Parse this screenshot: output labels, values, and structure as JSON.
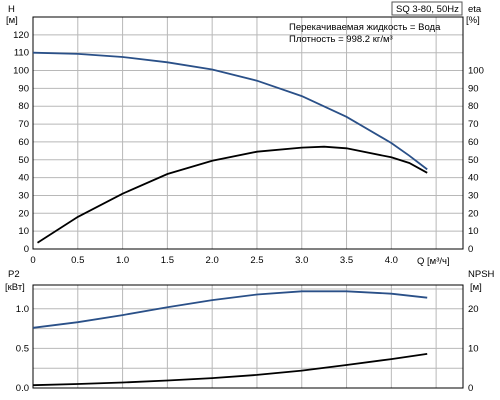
{
  "pump_label": "SQ 3-80, 50Hz",
  "liquid_note": "Перекачиваемая жидкость = Вода",
  "density_note": "Плотность = 998.2 кг/м³",
  "colors": {
    "head": "#2a5088",
    "eta": "#000000",
    "p2": "#2a5088",
    "npsh": "#000000",
    "grid": "#b8b8b8"
  },
  "chart_data": [
    {
      "type": "line",
      "title": "",
      "xlabel": "Q [м³/ч]",
      "xlim": [
        0,
        4.8
      ],
      "x_ticks": [
        0,
        0.5,
        1.0,
        1.5,
        2.0,
        2.5,
        3.0,
        3.5,
        4.0
      ],
      "x_tick_labels": [
        "0",
        "0.5",
        "1.0",
        "1.5",
        "2.0",
        "2.5",
        "3.0",
        "3.5",
        "4.0"
      ],
      "ylabel_left": [
        "H",
        "[м]"
      ],
      "ylim_left": [
        0,
        130
      ],
      "y_ticks_left": [
        0,
        10,
        20,
        30,
        40,
        50,
        60,
        70,
        80,
        90,
        100,
        110,
        120
      ],
      "ylabel_right": [
        "eta",
        "[%]"
      ],
      "ylim_right": [
        0,
        130
      ],
      "y_ticks_right": [
        0,
        10,
        20,
        30,
        40,
        50,
        60,
        70,
        80,
        90,
        100
      ],
      "grid": true,
      "series": [
        {
          "key": "head",
          "axis": "left",
          "x": [
            0,
            0.5,
            1.0,
            1.5,
            2.0,
            2.5,
            3.0,
            3.5,
            4.0,
            4.2,
            4.4
          ],
          "y": [
            110,
            109.3,
            107.6,
            104.6,
            100.6,
            94.3,
            85.7,
            74.1,
            59.4,
            52.3,
            44.6
          ]
        },
        {
          "key": "eta",
          "axis": "right",
          "x": [
            0.05,
            0.5,
            1.0,
            1.5,
            2.0,
            2.5,
            3.0,
            3.25,
            3.5,
            4.0,
            4.2,
            4.4
          ],
          "y": [
            3.5,
            18,
            31,
            42,
            49.5,
            54.5,
            56.8,
            57.3,
            56.4,
            51.4,
            48.2,
            42.7
          ]
        }
      ]
    },
    {
      "type": "line",
      "title": "",
      "xlabel": "",
      "xlim": [
        0,
        4.8
      ],
      "x_ticks": [
        0,
        0.5,
        1.0,
        1.5,
        2.0,
        2.5,
        3.0,
        3.5,
        4.0
      ],
      "ylabel_left": [
        "P2",
        "[кВт]"
      ],
      "ylim_left": [
        0,
        1.3
      ],
      "y_ticks_left": [
        0,
        0.5,
        1.0
      ],
      "y_tick_labels_left": [
        "0.0",
        "0.5",
        "1.0"
      ],
      "ylabel_right": [
        "NPSH",
        "[м]"
      ],
      "ylim_right": [
        0,
        26
      ],
      "y_ticks_right": [
        0,
        10,
        20
      ],
      "grid": true,
      "series": [
        {
          "key": "p2",
          "axis": "left",
          "x": [
            0,
            0.5,
            1.0,
            1.5,
            2.0,
            2.5,
            3.0,
            3.5,
            4.0,
            4.4
          ],
          "y": [
            0.76,
            0.83,
            0.92,
            1.02,
            1.11,
            1.18,
            1.22,
            1.22,
            1.19,
            1.14
          ]
        },
        {
          "key": "npsh",
          "axis": "right",
          "x": [
            0,
            0.5,
            1.0,
            1.5,
            2.0,
            2.5,
            3.0,
            3.5,
            4.0,
            4.4
          ],
          "y": [
            0.7,
            1.0,
            1.4,
            1.9,
            2.5,
            3.3,
            4.4,
            5.8,
            7.3,
            8.6
          ]
        }
      ]
    }
  ]
}
